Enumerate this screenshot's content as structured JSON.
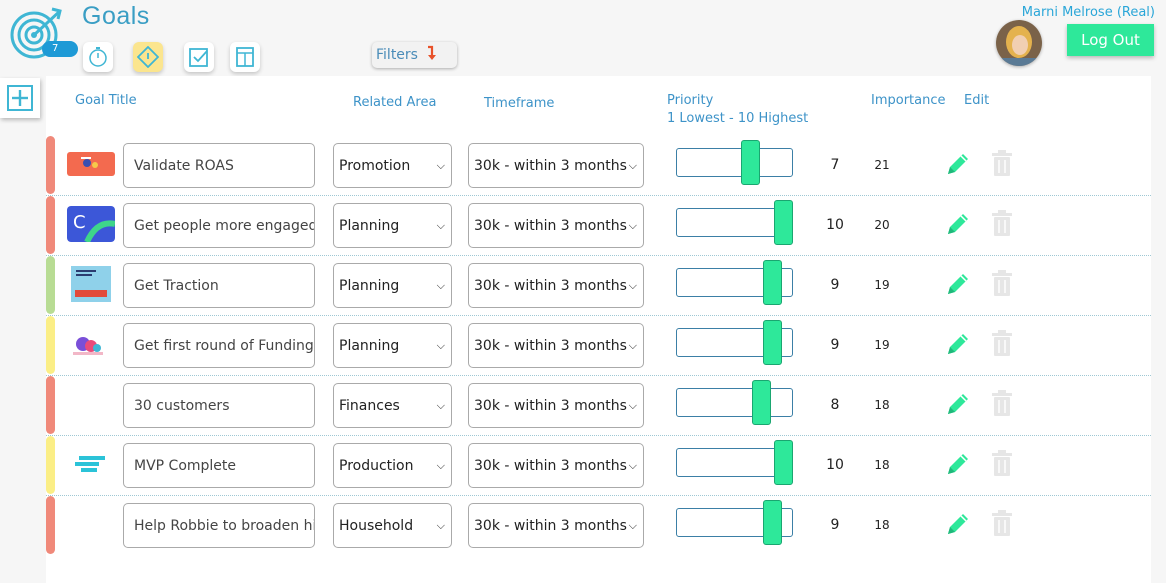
{
  "app": {
    "title": "Goals",
    "badge_count": "7"
  },
  "toolbar": {
    "filters_label": "Filters"
  },
  "user": {
    "name": "Marni Melrose (Real)",
    "logout_label": "Log Out"
  },
  "columns": {
    "goal_title": "Goal Title",
    "related_area": "Related Area",
    "timeframe": "Timeframe",
    "priority": "Priority",
    "priority_hint": "1 Lowest - 10 Highest",
    "importance": "Importance",
    "edit": "Edit"
  },
  "colors": {
    "accent": "#2ee89a",
    "title": "#3a9ec4",
    "red_bar": "#f0897a",
    "green_bar": "#b8dc94",
    "yellow_bar": "#fbee86"
  },
  "goals": [
    {
      "title": "Validate ROAS",
      "area": "Promotion",
      "timeframe": "30k - within 3 months",
      "priority": 7,
      "importance": "21",
      "bar_color": "#f0897a",
      "thumb": "promo-image"
    },
    {
      "title": "Get people more engaged",
      "area": "Planning",
      "timeframe": "30k - within 3 months",
      "priority": 10,
      "importance": "20",
      "bar_color": "#f0897a",
      "thumb": "c-logo-image"
    },
    {
      "title": "Get Traction",
      "area": "Planning",
      "timeframe": "30k - within 3 months",
      "priority": 9,
      "importance": "19",
      "bar_color": "#b8dc94",
      "thumb": "traction-book-image"
    },
    {
      "title": "Get first round of Funding",
      "area": "Planning",
      "timeframe": "30k - within 3 months",
      "priority": 9,
      "importance": "19",
      "bar_color": "#fbee86",
      "thumb": "funding-image"
    },
    {
      "title": "30 customers",
      "area": "Finances",
      "timeframe": "30k - within 3 months",
      "priority": 8,
      "importance": "18",
      "bar_color": "#f0897a",
      "thumb": ""
    },
    {
      "title": "MVP Complete",
      "area": "Production",
      "timeframe": "30k - within 3 months",
      "priority": 10,
      "importance": "18",
      "bar_color": "#fbee86",
      "thumb": "mvp-logo-image"
    },
    {
      "title": "Help Robbie to broaden hi:",
      "area": "Household",
      "timeframe": "30k - within 3 months",
      "priority": 9,
      "importance": "18",
      "bar_color": "#f0897a",
      "thumb": ""
    }
  ]
}
